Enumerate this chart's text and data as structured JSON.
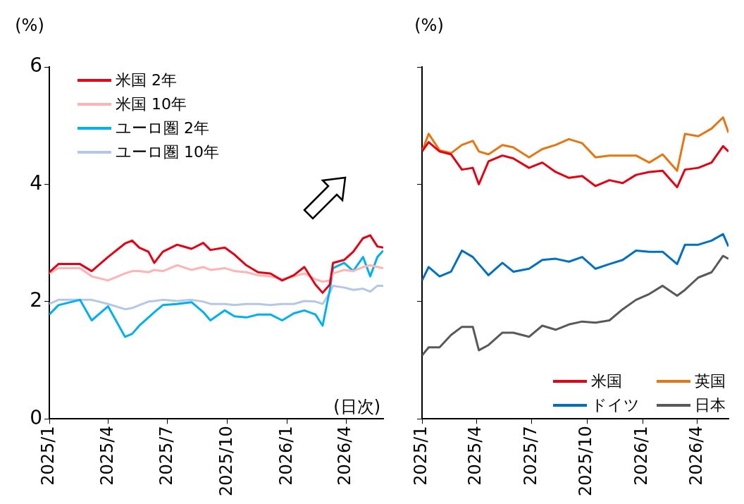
{
  "chart_data": [
    {
      "type": "line",
      "ylabel": "(%)",
      "annotations": [
        "(日次)"
      ],
      "legend": "top left",
      "x": [
        "2025-01-01",
        "2025-01-15",
        "2025-02-17",
        "2025-03-07",
        "2025-04-01",
        "2025-04-27",
        "2025-05-08",
        "2025-05-19",
        "2025-06-02",
        "2025-06-11",
        "2025-06-24",
        "2025-07-16",
        "2025-08-07",
        "2025-08-25",
        "2025-09-05",
        "2025-09-27",
        "2025-10-12",
        "2025-10-30",
        "2025-11-17",
        "2025-12-06",
        "2025-12-24",
        "2026-01-11",
        "2026-01-27",
        "2026-02-13",
        "2026-02-24",
        "2026-03-07",
        "2026-03-12",
        "2026-03-29",
        "2026-04-12",
        "2026-04-27",
        "2026-05-08",
        "2026-05-19",
        "2026-05-28"
      ],
      "xlim": [
        "2025-01-01",
        "2026-05-28"
      ],
      "xticks": [
        {
          "value": "2025-01-01",
          "label": "2025/1"
        },
        {
          "value": "2025-04-01",
          "label": "2025/4"
        },
        {
          "value": "2025-07-01",
          "label": "2025/7"
        },
        {
          "value": "2025-10-01",
          "label": "2025/10"
        },
        {
          "value": "2026-01-01",
          "label": "2026/1"
        },
        {
          "value": "2026-04-01",
          "label": "2026/4"
        }
      ],
      "ylim": [
        0,
        6
      ],
      "yticks": [
        0,
        2,
        4,
        6
      ],
      "series": [
        {
          "name": "米国 2年",
          "color": "#e60012",
          "values": [
            2.5,
            2.64,
            2.64,
            2.52,
            2.76,
            2.99,
            3.04,
            2.92,
            2.85,
            2.66,
            2.85,
            2.97,
            2.9,
            3.0,
            2.88,
            2.92,
            2.8,
            2.62,
            2.5,
            2.48,
            2.36,
            2.45,
            2.59,
            2.29,
            2.15,
            2.29,
            2.66,
            2.71,
            2.85,
            3.08,
            3.13,
            2.94,
            2.92
          ]
        },
        {
          "name": "米国 10年",
          "color": "#ffb3b3",
          "values": [
            2.48,
            2.57,
            2.57,
            2.43,
            2.36,
            2.48,
            2.52,
            2.52,
            2.5,
            2.54,
            2.52,
            2.62,
            2.54,
            2.59,
            2.54,
            2.57,
            2.52,
            2.5,
            2.45,
            2.43,
            2.38,
            2.43,
            2.48,
            2.38,
            2.34,
            2.36,
            2.48,
            2.54,
            2.52,
            2.59,
            2.62,
            2.59,
            2.57
          ]
        },
        {
          "name": "ユーロ圏 2年",
          "color": "#00b0f0",
          "values": [
            1.78,
            1.94,
            2.03,
            1.68,
            1.92,
            1.4,
            1.45,
            1.59,
            1.73,
            1.82,
            1.94,
            1.96,
            1.99,
            1.82,
            1.68,
            1.85,
            1.75,
            1.73,
            1.78,
            1.78,
            1.68,
            1.8,
            1.85,
            1.78,
            1.59,
            2.2,
            2.57,
            2.66,
            2.52,
            2.76,
            2.43,
            2.76,
            2.87
          ]
        },
        {
          "name": "ユーロ圏 10年",
          "color": "#b4c7e7",
          "values": [
            1.96,
            2.03,
            2.03,
            2.03,
            1.96,
            1.87,
            1.89,
            1.94,
            2.0,
            2.01,
            2.03,
            2.01,
            2.03,
            2.0,
            1.96,
            1.96,
            1.94,
            1.96,
            1.96,
            1.94,
            1.96,
            1.96,
            2.01,
            2.0,
            1.96,
            2.15,
            2.27,
            2.24,
            2.2,
            2.22,
            2.17,
            2.27,
            2.27
          ]
        }
      ]
    },
    {
      "type": "line",
      "ylabel": "(%)",
      "legend": "bottom right",
      "tick_labels": "x",
      "x": [
        "2025-01-01",
        "2025-01-12",
        "2025-01-30",
        "2025-02-18",
        "2025-03-08",
        "2025-03-26",
        "2025-04-05",
        "2025-04-21",
        "2025-05-14",
        "2025-06-01",
        "2025-06-27",
        "2025-07-19",
        "2025-08-10",
        "2025-09-01",
        "2025-09-23",
        "2025-10-15",
        "2025-11-07",
        "2025-11-29",
        "2025-12-21",
        "2026-01-12",
        "2026-02-03",
        "2026-02-27",
        "2026-03-12",
        "2026-04-03",
        "2026-04-25",
        "2026-05-14",
        "2026-05-23"
      ],
      "xlim": [
        "2025-01-01",
        "2026-05-23"
      ],
      "xticks": [
        {
          "value": "2025-01-01",
          "label": "2025/1"
        },
        {
          "value": "2025-04-01",
          "label": "2025/4"
        },
        {
          "value": "2025-07-01",
          "label": "2025/7"
        },
        {
          "value": "2025-10-01",
          "label": "2025/10"
        },
        {
          "value": "2026-01-01",
          "label": "2026/1"
        },
        {
          "value": "2026-04-01",
          "label": "2026/4"
        }
      ],
      "ylim": [
        0,
        6
      ],
      "yticks": [
        0,
        2,
        4,
        6
      ],
      "series": [
        {
          "name": "米国",
          "color": "#e60012",
          "values": [
            4.56,
            4.72,
            4.56,
            4.51,
            4.25,
            4.28,
            4.0,
            4.39,
            4.49,
            4.44,
            4.28,
            4.37,
            4.21,
            4.11,
            4.14,
            3.97,
            4.07,
            4.02,
            4.16,
            4.21,
            4.23,
            3.95,
            4.25,
            4.28,
            4.37,
            4.65,
            4.56
          ]
        },
        {
          "name": "英国",
          "color": "#e97511",
          "values": [
            4.56,
            4.86,
            4.58,
            4.53,
            4.67,
            4.74,
            4.56,
            4.51,
            4.67,
            4.63,
            4.46,
            4.6,
            4.67,
            4.77,
            4.7,
            4.46,
            4.49,
            4.49,
            4.49,
            4.37,
            4.51,
            4.23,
            4.86,
            4.82,
            4.95,
            5.14,
            4.88
          ]
        },
        {
          "name": "ドイツ",
          "color": "#0070c0",
          "values": [
            2.36,
            2.59,
            2.43,
            2.51,
            2.87,
            2.76,
            2.64,
            2.45,
            2.66,
            2.51,
            2.56,
            2.71,
            2.73,
            2.68,
            2.76,
            2.56,
            2.64,
            2.71,
            2.87,
            2.85,
            2.85,
            2.64,
            2.97,
            2.97,
            3.04,
            3.15,
            2.94
          ]
        },
        {
          "name": "日本",
          "color": "#595959",
          "values": [
            1.08,
            1.22,
            1.22,
            1.43,
            1.57,
            1.57,
            1.17,
            1.26,
            1.47,
            1.47,
            1.4,
            1.59,
            1.52,
            1.61,
            1.66,
            1.64,
            1.68,
            1.87,
            2.03,
            2.13,
            2.27,
            2.1,
            2.2,
            2.41,
            2.5,
            2.78,
            2.73
          ]
        }
      ]
    }
  ]
}
